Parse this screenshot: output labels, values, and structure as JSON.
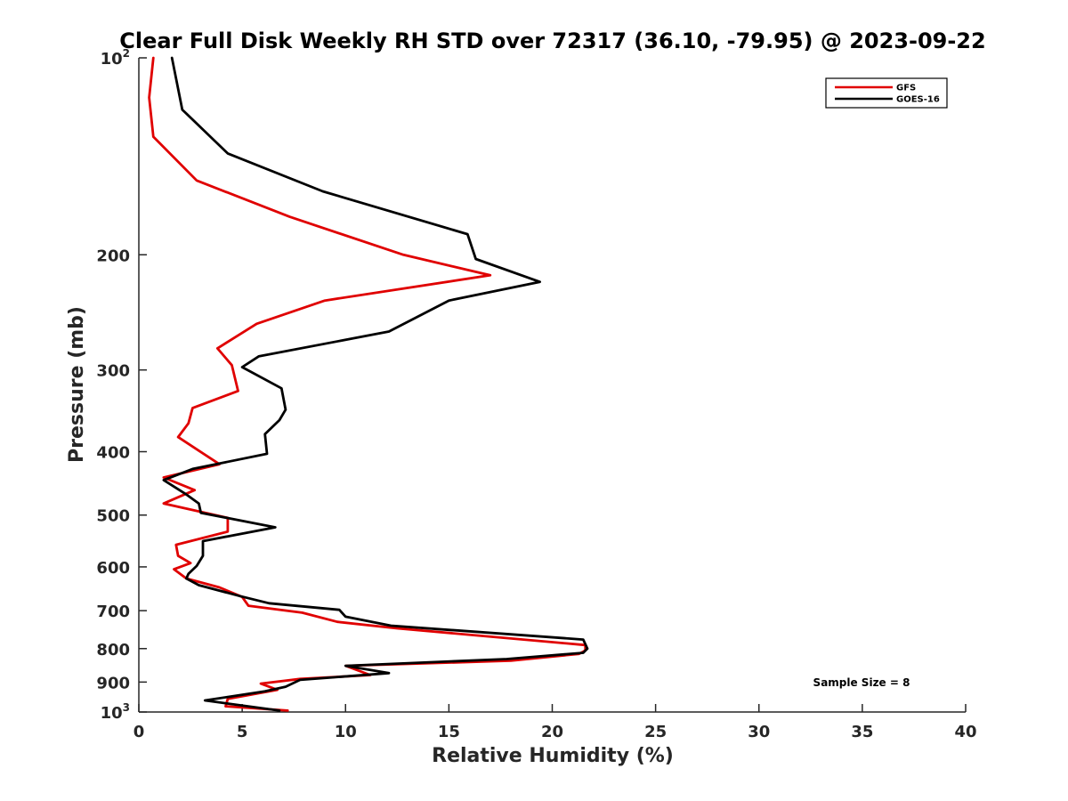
{
  "chart_data": {
    "type": "line",
    "title": "Clear Full Disk Weekly RH STD over 72317 (36.10, -79.95) @ 2023-09-22",
    "xlabel": "Relative Humidity (%)",
    "ylabel": "Pressure (mb)",
    "xlim": [
      0,
      40
    ],
    "ylim": [
      1000,
      100
    ],
    "yscale": "log",
    "y_reversed": true,
    "xticks": [
      0,
      5,
      10,
      15,
      20,
      25,
      30,
      35,
      40
    ],
    "xtick_labels": [
      "0",
      "5",
      "10",
      "15",
      "20",
      "25",
      "30",
      "35",
      "40"
    ],
    "yticks": [
      {
        "value": 100,
        "base": "10",
        "sup": "2"
      },
      {
        "value": 200,
        "base": "200",
        "sup": ""
      },
      {
        "value": 300,
        "base": "300",
        "sup": ""
      },
      {
        "value": 400,
        "base": "400",
        "sup": ""
      },
      {
        "value": 500,
        "base": "500",
        "sup": ""
      },
      {
        "value": 600,
        "base": "600",
        "sup": ""
      },
      {
        "value": 700,
        "base": "700",
        "sup": ""
      },
      {
        "value": 800,
        "base": "800",
        "sup": ""
      },
      {
        "value": 900,
        "base": "900",
        "sup": ""
      },
      {
        "value": 1000,
        "base": "10",
        "sup": "3"
      }
    ],
    "grid": false,
    "legend_position": "top-right",
    "annotation": "Sample Size = 8",
    "series": [
      {
        "name": "GFS",
        "color": "#e00000",
        "points": [
          [
            0.7,
            100
          ],
          [
            0.5,
            115
          ],
          [
            0.7,
            132
          ],
          [
            2.8,
            154
          ],
          [
            7.3,
            175
          ],
          [
            12.8,
            200
          ],
          [
            17.0,
            215
          ],
          [
            9.0,
            235
          ],
          [
            5.7,
            255
          ],
          [
            3.8,
            278
          ],
          [
            4.5,
            295
          ],
          [
            4.8,
            323
          ],
          [
            2.6,
            343
          ],
          [
            2.4,
            362
          ],
          [
            1.9,
            380
          ],
          [
            3.9,
            418
          ],
          [
            1.2,
            438
          ],
          [
            2.7,
            458
          ],
          [
            1.2,
            480
          ],
          [
            4.3,
            505
          ],
          [
            4.3,
            530
          ],
          [
            1.8,
            555
          ],
          [
            1.9,
            577
          ],
          [
            2.5,
            592
          ],
          [
            1.7,
            605
          ],
          [
            2.3,
            625
          ],
          [
            3.9,
            645
          ],
          [
            5.0,
            667
          ],
          [
            5.3,
            688
          ],
          [
            7.9,
            705
          ],
          [
            9.6,
            728
          ],
          [
            12.5,
            745
          ],
          [
            21.6,
            790
          ],
          [
            21.6,
            805
          ],
          [
            21.3,
            815
          ],
          [
            18.0,
            835
          ],
          [
            10.0,
            850
          ],
          [
            11.2,
            878
          ],
          [
            7.8,
            890
          ],
          [
            5.9,
            905
          ],
          [
            6.7,
            925
          ],
          [
            4.3,
            955
          ],
          [
            4.2,
            980
          ],
          [
            7.2,
            995
          ]
        ]
      },
      {
        "name": "GOES-16",
        "color": "#000000",
        "points": [
          [
            1.6,
            100
          ],
          [
            2.1,
            120
          ],
          [
            4.3,
            140
          ],
          [
            8.9,
            160
          ],
          [
            15.9,
            186
          ],
          [
            16.3,
            203
          ],
          [
            19.4,
            220
          ],
          [
            15.0,
            235
          ],
          [
            12.1,
            262
          ],
          [
            5.8,
            286
          ],
          [
            5.0,
            297
          ],
          [
            6.9,
            320
          ],
          [
            7.1,
            345
          ],
          [
            6.8,
            358
          ],
          [
            6.1,
            376
          ],
          [
            6.2,
            403
          ],
          [
            2.6,
            425
          ],
          [
            1.2,
            442
          ],
          [
            2.3,
            465
          ],
          [
            2.9,
            480
          ],
          [
            3.0,
            496
          ],
          [
            6.6,
            522
          ],
          [
            3.1,
            548
          ],
          [
            3.1,
            577
          ],
          [
            2.8,
            598
          ],
          [
            2.4,
            615
          ],
          [
            2.3,
            625
          ],
          [
            2.9,
            640
          ],
          [
            4.9,
            665
          ],
          [
            6.3,
            682
          ],
          [
            9.7,
            698
          ],
          [
            10.0,
            715
          ],
          [
            12.2,
            738
          ],
          [
            21.5,
            775
          ],
          [
            21.7,
            800
          ],
          [
            21.5,
            812
          ],
          [
            17.8,
            830
          ],
          [
            10.0,
            850
          ],
          [
            12.1,
            872
          ],
          [
            7.8,
            893
          ],
          [
            7.1,
            915
          ],
          [
            6.1,
            930
          ],
          [
            3.2,
            960
          ],
          [
            6.8,
            995
          ]
        ]
      }
    ]
  }
}
